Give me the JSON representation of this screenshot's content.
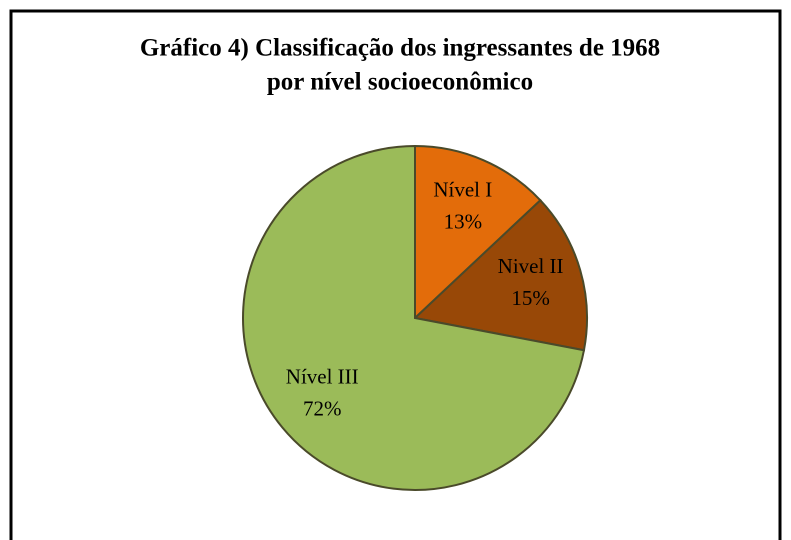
{
  "chart_data": {
    "type": "pie",
    "title": [
      "Gráfico 4) Classificação dos ingressantes de 1968",
      "por nível socioeconômico"
    ],
    "categories": [
      "Nível I",
      "Nivel II",
      "Nível III"
    ],
    "values": [
      13,
      15,
      72
    ],
    "value_labels": [
      "13%",
      "15%",
      "72%"
    ],
    "colors": [
      "#e36c0a",
      "#984807",
      "#9bbb59"
    ]
  }
}
